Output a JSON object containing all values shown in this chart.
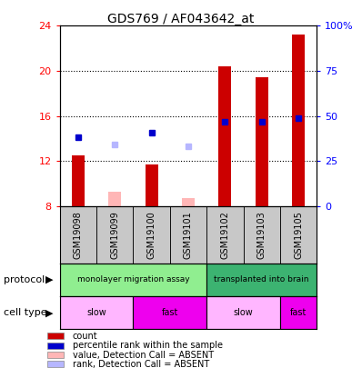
{
  "title": "GDS769 / AF043642_at",
  "samples": [
    "GSM19098",
    "GSM19099",
    "GSM19100",
    "GSM19101",
    "GSM19102",
    "GSM19103",
    "GSM19105"
  ],
  "count_values": [
    12.5,
    null,
    11.7,
    null,
    20.4,
    19.4,
    23.2
  ],
  "count_absent": [
    null,
    9.3,
    null,
    8.7,
    null,
    null,
    null
  ],
  "rank_values": [
    14.1,
    null,
    14.5,
    null,
    15.5,
    15.5,
    15.8
  ],
  "rank_absent": [
    null,
    13.5,
    null,
    13.3,
    null,
    null,
    null
  ],
  "ylim": [
    8,
    24
  ],
  "yticks": [
    8,
    12,
    16,
    20,
    24
  ],
  "y2tick_pcts": [
    0,
    25,
    50,
    75,
    100
  ],
  "y2labels": [
    "0",
    "25",
    "50",
    "75",
    "100%"
  ],
  "protocol_groups": [
    {
      "label": "monolayer migration assay",
      "start": 0,
      "end": 4,
      "color": "#90EE90"
    },
    {
      "label": "transplanted into brain",
      "start": 4,
      "end": 7,
      "color": "#3CB371"
    }
  ],
  "cell_type_groups": [
    {
      "label": "slow",
      "start": 0,
      "end": 2,
      "color": "#FFB6FF"
    },
    {
      "label": "fast",
      "start": 2,
      "end": 4,
      "color": "#EE00EE"
    },
    {
      "label": "slow",
      "start": 4,
      "end": 6,
      "color": "#FFB6FF"
    },
    {
      "label": "fast",
      "start": 6,
      "end": 7,
      "color": "#EE00EE"
    }
  ],
  "bar_width": 0.35,
  "count_color": "#CC0000",
  "count_absent_color": "#FFB6B6",
  "rank_color": "#0000CC",
  "rank_absent_color": "#B6B6FF",
  "bg_color": "#C8C8C8",
  "chart_bg": "#FFFFFF",
  "legend_items": [
    {
      "color": "#CC0000",
      "label": "count"
    },
    {
      "color": "#0000CC",
      "label": "percentile rank within the sample"
    },
    {
      "color": "#FFB6B6",
      "label": "value, Detection Call = ABSENT"
    },
    {
      "color": "#B6B6FF",
      "label": "rank, Detection Call = ABSENT"
    }
  ]
}
